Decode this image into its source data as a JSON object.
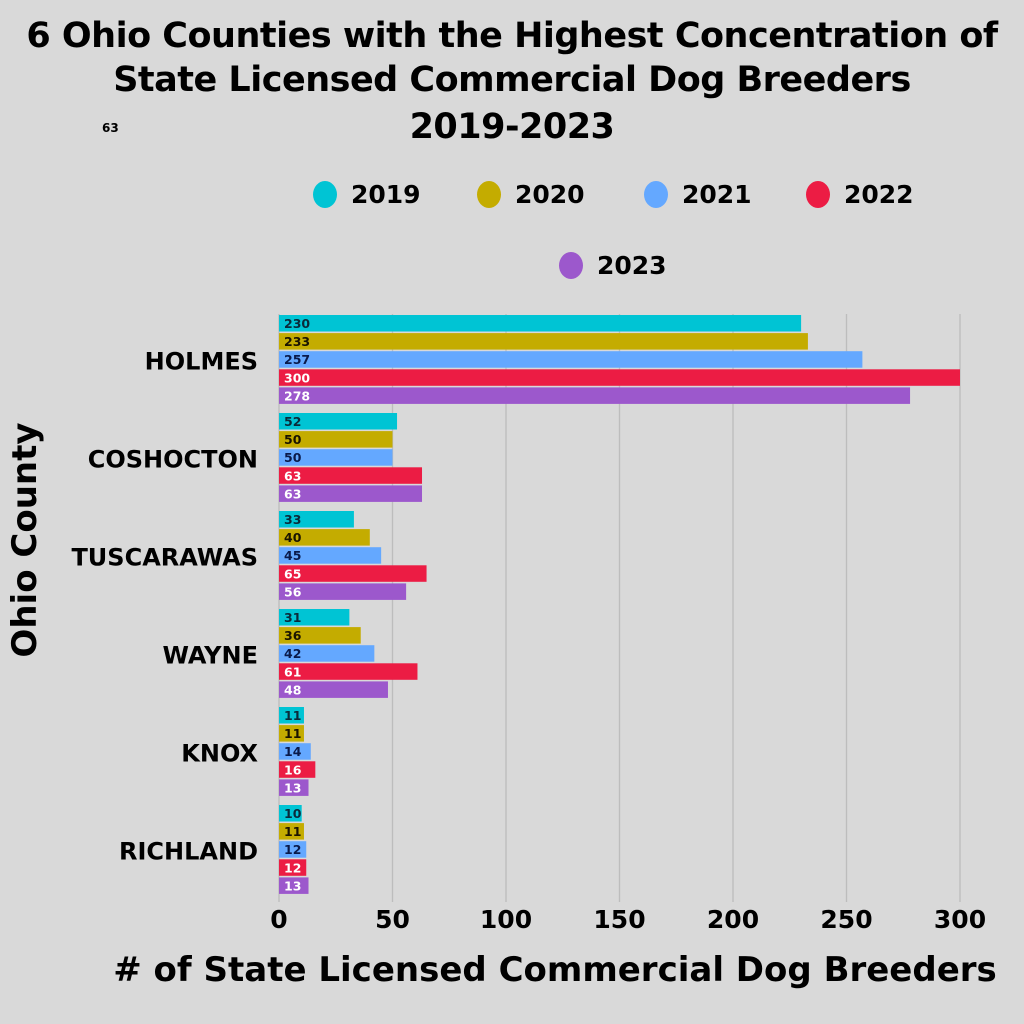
{
  "chart_data": {
    "type": "bar",
    "orientation": "horizontal",
    "title": [
      "6 Ohio Counties with the Highest Concentration of",
      "State Licensed Commercial Dog Breeders",
      "2019-2023"
    ],
    "stray_label": "63",
    "xlabel": "# of State Licensed Commercial Dog Breeders",
    "ylabel": "Ohio County",
    "categories": [
      "HOLMES",
      "COSHOCTON",
      "TUSCARAWAS",
      "WAYNE",
      "KNOX",
      "RICHLAND"
    ],
    "xlim": [
      0,
      300
    ],
    "xticks": [
      0,
      50,
      100,
      150,
      200,
      250,
      300
    ],
    "grid": true,
    "legend_position": "top",
    "series": [
      {
        "name": "2019",
        "color": "#00c4d4",
        "label_color": "#0a2a3a",
        "values": [
          230,
          52,
          33,
          31,
          11,
          10
        ]
      },
      {
        "name": "2020",
        "color": "#c4ac00",
        "label_color": "#1a1400",
        "values": [
          233,
          50,
          40,
          36,
          11,
          11
        ]
      },
      {
        "name": "2021",
        "color": "#64a8ff",
        "label_color": "#0a1a4a",
        "values": [
          257,
          50,
          45,
          42,
          14,
          12
        ]
      },
      {
        "name": "2022",
        "color": "#ec1c44",
        "label_color": "#ffffff",
        "values": [
          300,
          63,
          65,
          61,
          16,
          12
        ]
      },
      {
        "name": "2023",
        "color": "#9c58cc",
        "label_color": "#ffffff",
        "values": [
          278,
          63,
          56,
          48,
          13,
          13
        ]
      }
    ]
  }
}
